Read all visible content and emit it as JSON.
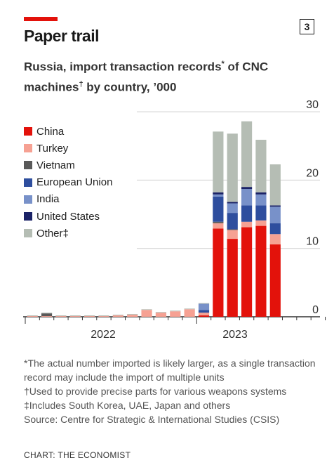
{
  "header": {
    "title": "Paper trail",
    "chart_number": "3",
    "subtitle_a": "Russia, import transaction records",
    "subtitle_mark_a": "*",
    "subtitle_b": " of CNC machines",
    "subtitle_mark_b": "†",
    "subtitle_c": " by country, ’000"
  },
  "colors": {
    "accent": "#e3120b",
    "China": "#e3120b",
    "Turkey": "#f6a193",
    "Vietnam": "#595959",
    "European Union": "#2e4e9e",
    "India": "#7891c9",
    "United States": "#1b2367",
    "Other‡": "#b5bdb4"
  },
  "chart_data": {
    "type": "bar",
    "stacked": true,
    "ylim": [
      0,
      30
    ],
    "yticks": [
      "0",
      "10",
      "20",
      "30"
    ],
    "x_axis_labels": [
      "2022",
      "2023"
    ],
    "legend_position": "left",
    "grid": true,
    "series": [
      {
        "name": "China",
        "values": [
          0,
          0,
          0,
          0,
          0,
          0,
          0,
          0,
          0,
          0,
          0,
          0,
          0.2,
          12.9,
          11.4,
          13.1,
          13.3,
          10.6
        ]
      },
      {
        "name": "Turkey",
        "values": [
          0.1,
          0.1,
          0.1,
          0.1,
          0.1,
          0.1,
          0.2,
          0.3,
          1.0,
          0.6,
          0.8,
          1.1,
          0.4,
          0.8,
          1.3,
          0.8,
          0.8,
          1.5
        ]
      },
      {
        "name": "Vietnam",
        "values": [
          0,
          0.4,
          0,
          0,
          0,
          0,
          0,
          0,
          0,
          0,
          0,
          0,
          0,
          0.2,
          0.1,
          0,
          0,
          0
        ]
      },
      {
        "name": "European Union",
        "values": [
          0,
          0,
          0,
          0,
          0,
          0,
          0,
          0,
          0,
          0,
          0,
          0,
          0.4,
          3.7,
          2.4,
          2.4,
          2.2,
          1.6
        ]
      },
      {
        "name": "India",
        "values": [
          0,
          0,
          0,
          0,
          0,
          0,
          0,
          0,
          0,
          0,
          0,
          0,
          0.9,
          0.3,
          1.4,
          2.4,
          1.6,
          2.4
        ]
      },
      {
        "name": "United States",
        "values": [
          0,
          0,
          0,
          0,
          0,
          0,
          0,
          0,
          0,
          0,
          0,
          0,
          0,
          0.3,
          0.2,
          0.3,
          0.3,
          0.2
        ]
      },
      {
        "name": "Other‡",
        "values": [
          0.1,
          0.1,
          0.1,
          0.1,
          0.1,
          0.1,
          0.1,
          0.1,
          0.1,
          0.1,
          0.1,
          0.1,
          0.1,
          8.9,
          10.0,
          9.6,
          7.7,
          6.0
        ]
      }
    ]
  },
  "notes": {
    "note1": "*The actual number imported is likely larger, as a single transaction record may include the import of multiple units",
    "note2": "†Used to provide precise parts for various weapons systems",
    "note3": "‡Includes South Korea, UAE, Japan and others",
    "source": "Source: Centre for Strategic & International Studies (CSIS)"
  },
  "credit": "CHART: THE ECONOMIST"
}
